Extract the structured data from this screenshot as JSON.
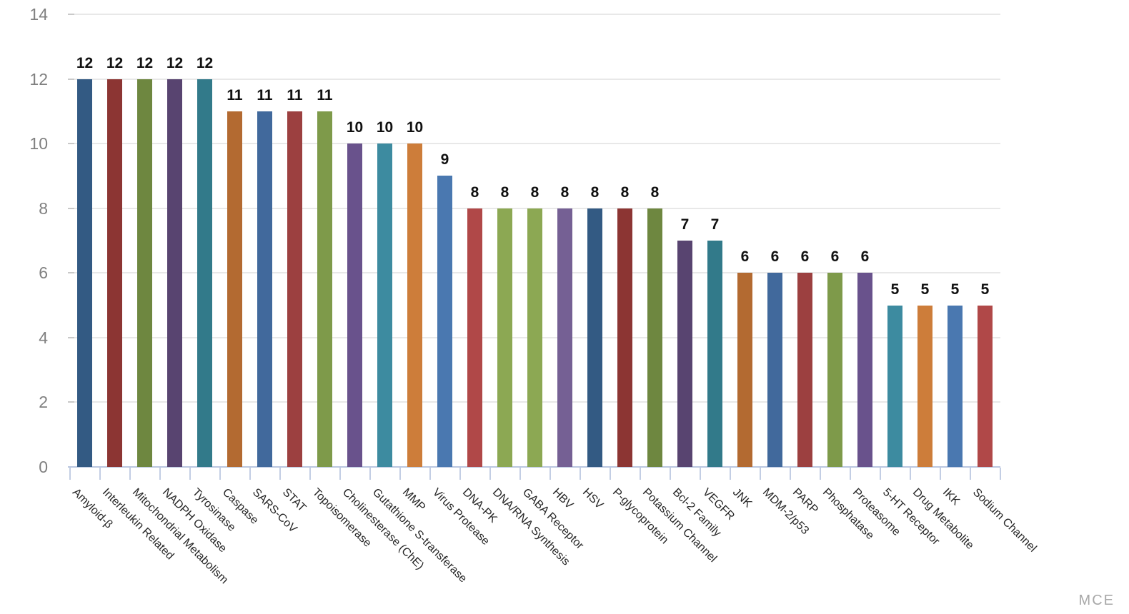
{
  "chart_data": {
    "type": "bar",
    "title": "",
    "xlabel": "",
    "ylabel": "",
    "categories": [
      "Amyloid-β",
      "Interleukin Related",
      "Mitochondrial Metabolism",
      "NADPH Oxidase",
      "Tyrosinase",
      "Caspase",
      "SARS-CoV",
      "STAT",
      "Topoisomerase",
      "Cholinesterase (ChE)",
      "Gutathione S-transferase",
      "MMP",
      "Virus Protease",
      "DNA-PK",
      "DNA/RNA Synthesis",
      "GABA Receptor",
      "HBV",
      "HSV",
      "P-glycoprotein",
      "Potassium Channel",
      "Bcl-2 Family",
      "VEGFR",
      "JNK",
      "MDM-2/p53",
      "PARP",
      "Phosphatase",
      "Proteasome",
      "5-HT Receptor",
      "Drug Metabolite",
      "IKK",
      "Sodium Channel"
    ],
    "values": [
      12,
      12,
      12,
      12,
      12,
      11,
      11,
      11,
      11,
      10,
      10,
      10,
      9,
      8,
      8,
      8,
      8,
      8,
      8,
      8,
      7,
      7,
      6,
      6,
      6,
      6,
      6,
      5,
      5,
      5,
      5
    ],
    "bar_colors": [
      "#335a83",
      "#8c3533",
      "#6e8740",
      "#584470",
      "#327a8a",
      "#b36a31",
      "#41699c",
      "#9c4040",
      "#7e9a4a",
      "#69528c",
      "#3d8ba0",
      "#cd7d3a",
      "#4a78b0",
      "#b04848",
      "#8ca853",
      "#8ca853",
      "#756094",
      "#335a83",
      "#8c3533",
      "#6e8740",
      "#584470",
      "#327a8a",
      "#b36a31",
      "#41699c",
      "#9c4040",
      "#7e9a4a",
      "#69528c",
      "#3d8ba0",
      "#cd7d3a",
      "#4a78b0",
      "#b04848"
    ],
    "ylim": [
      0,
      14
    ],
    "yticks": [
      0,
      2,
      4,
      6,
      8,
      10,
      12,
      14
    ],
    "grid": true,
    "legend_position": "none",
    "value_labels_shown": true,
    "x_label_rotation_deg": 45
  },
  "watermark": {
    "label": "MCE"
  },
  "style_colors": {
    "background": "#ffffff",
    "gridline": "#e8e8e8",
    "y_tick_dash": "#c9c9c9",
    "axis_line": "#bac7e0",
    "x_tick": "#c3cee4",
    "y_tick_text": "#808080",
    "x_label_text": "#262626",
    "value_label_text": "#111111",
    "watermark_text": "#a8a8a8"
  }
}
